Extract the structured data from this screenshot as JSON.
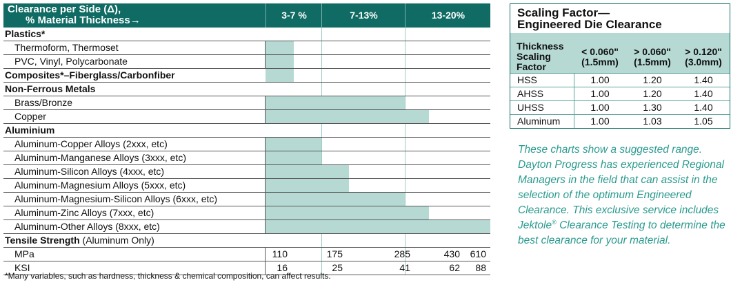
{
  "clearance_table": {
    "header": {
      "title_line1": "Clearance per Side (Δ),",
      "title_line2": "% Material Thickness→",
      "columns": [
        "3-7 %",
        "7-13%",
        "13-20%"
      ]
    },
    "rows": [
      {
        "kind": "category",
        "label": "Plastics*"
      },
      {
        "kind": "item",
        "label": "Thermoform, Thermoset",
        "bar_start_pct": 3,
        "bar_end_pct": 5
      },
      {
        "kind": "item",
        "label": "PVC, Vinyl, Polycarbonate",
        "bar_start_pct": 3,
        "bar_end_pct": 5
      },
      {
        "kind": "category",
        "label": "Composites*–Fiberglass/Carbonfiber",
        "bar_start_pct": 3,
        "bar_end_pct": 5
      },
      {
        "kind": "category",
        "label": "Non-Ferrous Metals"
      },
      {
        "kind": "item",
        "label": "Brass/Bronze",
        "bar_start_pct": 3,
        "bar_end_pct": 13
      },
      {
        "kind": "item",
        "label": "Copper",
        "bar_start_pct": 3,
        "bar_end_pct": 15
      },
      {
        "kind": "category",
        "label": "Aluminium"
      },
      {
        "kind": "item",
        "label": "Aluminum-Copper Alloys (2xxx, etc)",
        "bar_start_pct": 3,
        "bar_end_pct": 7
      },
      {
        "kind": "item",
        "label": "Aluminum-Manganese Alloys (3xxx, etc)",
        "bar_start_pct": 3,
        "bar_end_pct": 7
      },
      {
        "kind": "item",
        "label": "Aluminum-Silicon Alloys (4xxx, etc)",
        "bar_start_pct": 3,
        "bar_end_pct": 9
      },
      {
        "kind": "item",
        "label": "Aluminum-Magnesium Alloys (5xxx, etc)",
        "bar_start_pct": 3,
        "bar_end_pct": 9
      },
      {
        "kind": "item",
        "label": "Aluminum-Magnesium-Silicon Alloys (6xxx, etc)",
        "bar_start_pct": 3,
        "bar_end_pct": 13
      },
      {
        "kind": "item",
        "label": "Aluminum-Zinc Alloys (7xxx, etc)",
        "bar_start_pct": 3,
        "bar_end_pct": 15
      },
      {
        "kind": "item",
        "label": "Aluminum-Other Alloys (8xxx, etc)",
        "bar_start_pct": 3,
        "bar_end_pct": 20
      },
      {
        "kind": "category",
        "label": "Tensile Strength",
        "label_suffix": " (Aluminum Only)"
      },
      {
        "kind": "item",
        "label": "MPa",
        "numbers": [
          "110",
          "175",
          "285",
          "430",
          "610"
        ]
      },
      {
        "kind": "item",
        "label": "KSI",
        "numbers": [
          "16",
          "25",
          "41",
          "62",
          "88"
        ]
      }
    ],
    "footnote": "*Many variables, such as hardness, thickness & chemical composition, can affect results."
  },
  "scaling_table": {
    "title_line1": "Scaling Factor—",
    "title_line2": "Engineered Die Clearance",
    "corner_header": [
      "Thickness",
      "Scaling",
      "Factor"
    ],
    "columns": [
      {
        "line1": "< 0.060\"",
        "line2": "(1.5mm)"
      },
      {
        "line1": "> 0.060\"",
        "line2": "(1.5mm)"
      },
      {
        "line1": "> 0.120\"",
        "line2": "(3.0mm)"
      }
    ],
    "rows": [
      {
        "name": "HSS",
        "values": [
          "1.00",
          "1.20",
          "1.40"
        ]
      },
      {
        "name": "AHSS",
        "values": [
          "1.00",
          "1.20",
          "1.40"
        ]
      },
      {
        "name": "UHSS",
        "values": [
          "1.00",
          "1.30",
          "1.40"
        ]
      },
      {
        "name": "Aluminum",
        "values": [
          "1.00",
          "1.03",
          "1.05"
        ]
      }
    ]
  },
  "note": {
    "text_before_mark": "These charts show a suggested range. Dayton Progress has experienced Regional Managers in the field that can assist in the selection of the optimum Engineered Clearance.  This exclusive service includes Jektole",
    "mark": "®",
    "text_after_mark": " Clearance Testing to determine the best clearance for your material."
  },
  "colors": {
    "header_bg": "#0f6b63",
    "bar_fill": "#b6d9d4",
    "note_text": "#2a9a8e"
  }
}
